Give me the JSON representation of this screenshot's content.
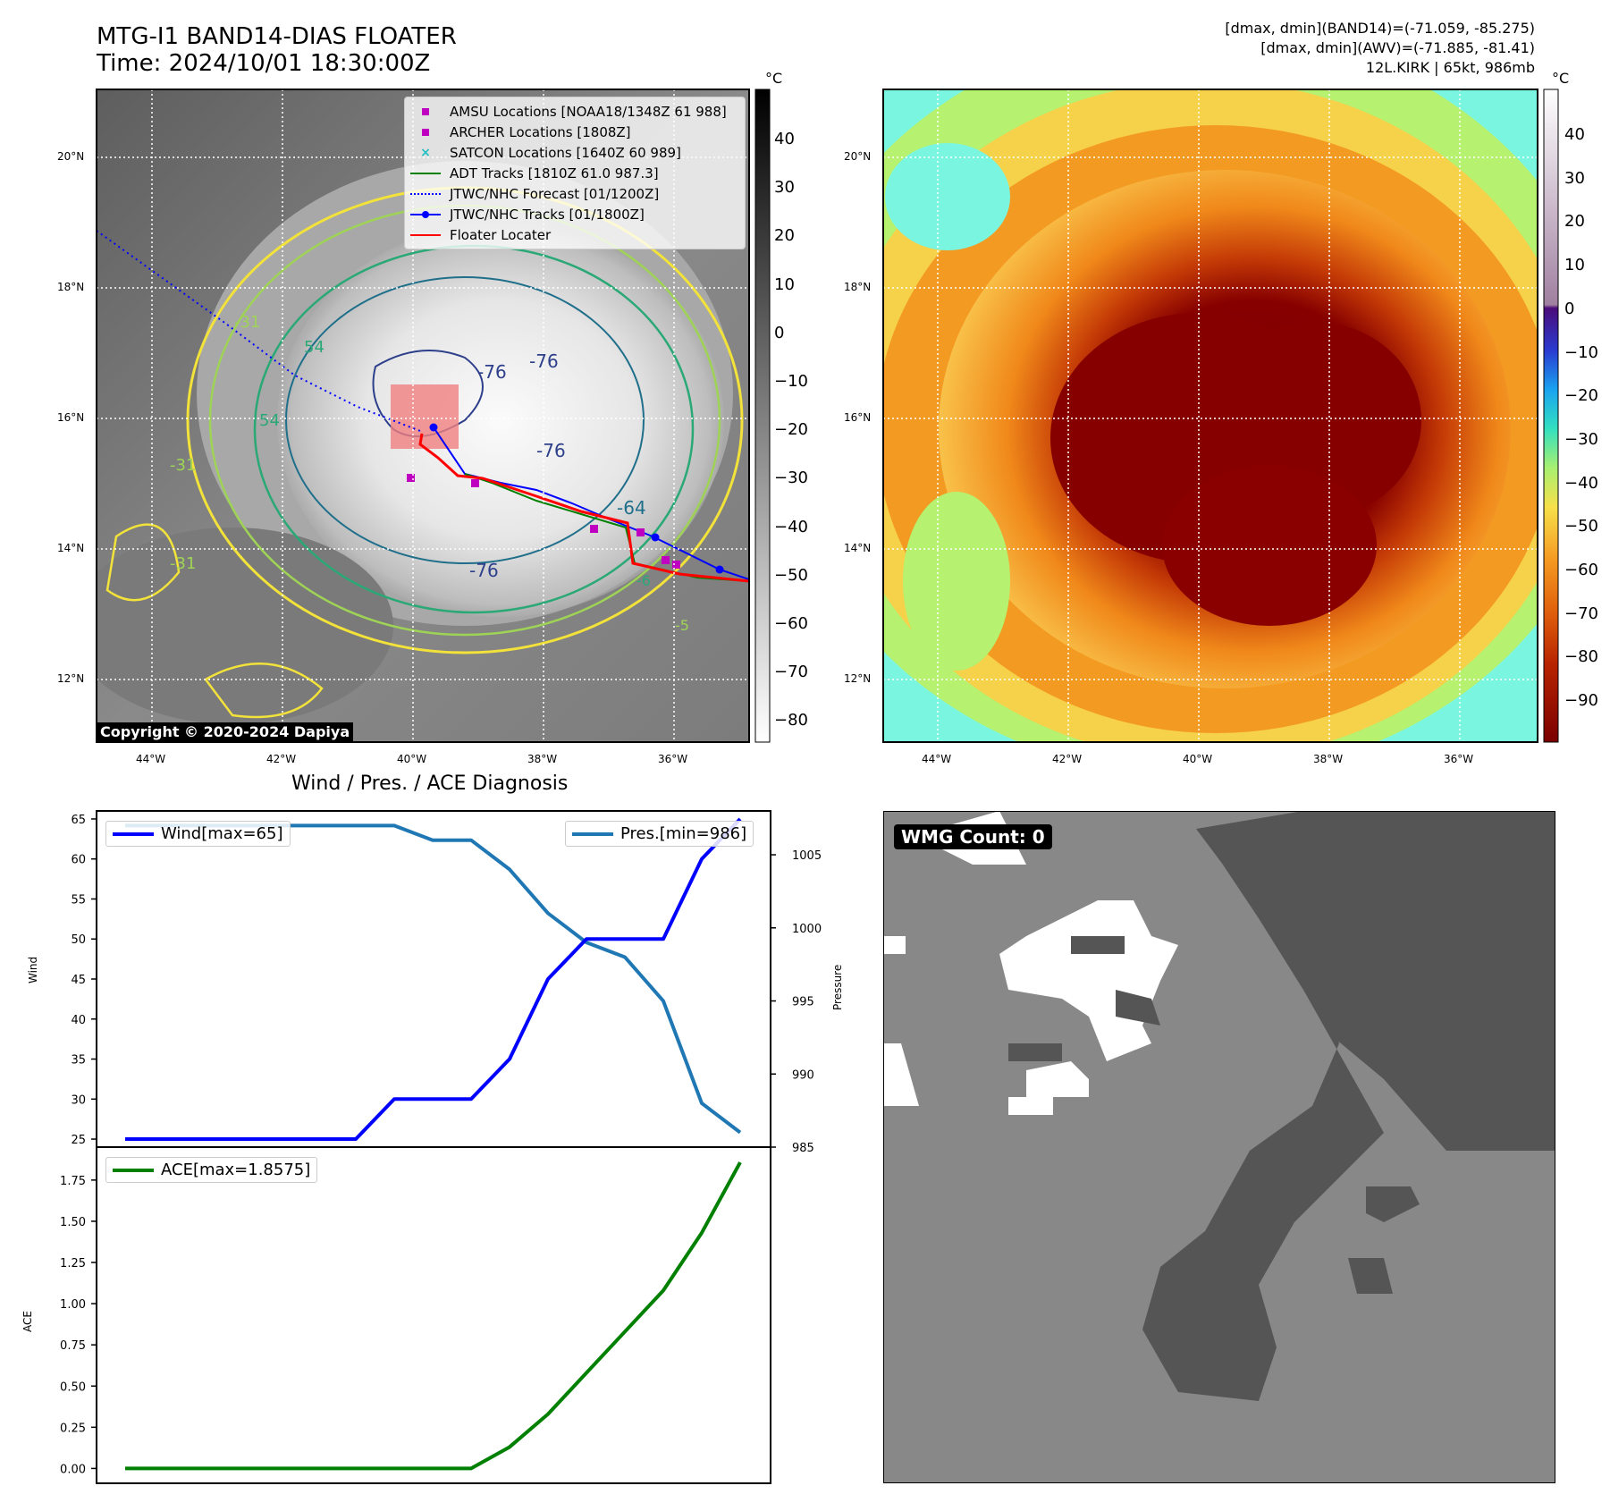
{
  "header": {
    "title_line1": "MTG-I1 BAND14-DIAS FLOATER",
    "title_line2": "Time: 2024/10/01 18:30:00Z",
    "info_line1": "[dmax, dmin](BAND14)=(-71.059, -85.275)",
    "info_line2": "[dmax, dmin](AWV)=(-71.885, -81.41)",
    "info_line3": "12L.KIRK | 65kt, 986mb"
  },
  "maps": {
    "lat_labels": [
      "20°N",
      "18°N",
      "16°N",
      "14°N",
      "12°N"
    ],
    "lon_labels": [
      "44°W",
      "42°W",
      "40°W",
      "38°W",
      "36°W"
    ],
    "copyright": "Copyright © 2020-2024 Dapiya",
    "legend": [
      {
        "label": "AMSU Locations [NOAA18/1348Z 61 988]",
        "color": "#c000c0",
        "symbol": "square"
      },
      {
        "label": "ARCHER Locations [1808Z]",
        "color": "#c000c0",
        "symbol": "square"
      },
      {
        "label": "SATCON Locations [1640Z 60 989]",
        "color": "#22c0c0",
        "symbol": "x"
      },
      {
        "label": "ADT Tracks [1810Z 61.0 987.3]",
        "color": "#008000",
        "symbol": "line"
      },
      {
        "label": "JTWC/NHC Forecast [01/1200Z]",
        "color": "#0000ff",
        "symbol": "dotted"
      },
      {
        "label": "JTWC/NHC Tracks [01/1800Z]",
        "color": "#0000ff",
        "symbol": "line-dot"
      },
      {
        "label": "Floater Locater",
        "color": "#ff0000",
        "symbol": "line"
      }
    ],
    "contour_labels": [
      "-76",
      "-76",
      "-76",
      "-76",
      "-64",
      "54",
      "54",
      "-31",
      "-31",
      "-31",
      "-6",
      "-5"
    ],
    "unit": "°C",
    "cbar_left_ticks": [
      "40",
      "30",
      "20",
      "10",
      "0",
      "−10",
      "−20",
      "−30",
      "−40",
      "−50",
      "−60",
      "−70",
      "−80"
    ],
    "cbar_right_ticks": [
      "40",
      "30",
      "20",
      "10",
      "0",
      "−10",
      "−20",
      "−30",
      "−40",
      "−50",
      "−60",
      "−70",
      "−80",
      "−90"
    ]
  },
  "diagnosis": {
    "title": "Wind / Pres. / ACE Diagnosis",
    "wind_ylabel": "Wind",
    "pres_ylabel": "Pressure",
    "ace_ylabel": "ACE",
    "wind_legend": "Wind[max=65]",
    "pres_legend": "Pres.[min=986]",
    "ace_legend": "ACE[max=1.8575]",
    "wind_ticks": [
      "65",
      "60",
      "55",
      "50",
      "45",
      "40",
      "35",
      "30",
      "25"
    ],
    "pres_ticks": [
      "1005",
      "1000",
      "995",
      "990",
      "985"
    ],
    "ace_ticks": [
      "1.75",
      "1.50",
      "1.25",
      "1.00",
      "0.75",
      "0.50",
      "0.25",
      "0.00"
    ]
  },
  "wmg": {
    "label": "WMG Count: 0"
  },
  "chart_data": [
    {
      "type": "line",
      "title": "Wind / Pres. / ACE Diagnosis",
      "x": [
        0,
        1,
        2,
        3,
        4,
        5,
        6,
        7,
        8,
        9,
        10,
        11,
        12,
        13,
        14,
        15,
        16
      ],
      "series": [
        {
          "name": "Wind[max=65]",
          "axis": "left",
          "color": "#0000ff",
          "values": [
            25,
            25,
            25,
            25,
            25,
            25,
            25,
            30,
            30,
            30,
            35,
            45,
            50,
            50,
            50,
            60,
            65
          ]
        },
        {
          "name": "Pres.[min=986]",
          "axis": "right",
          "color": "#1f77b4",
          "values": [
            1007,
            1007,
            1007,
            1007,
            1007,
            1007,
            1007,
            1007,
            1006,
            1006,
            1004,
            1001,
            999,
            998,
            995,
            988,
            986
          ]
        }
      ],
      "ylabel": "Wind",
      "ylim": [
        24,
        66
      ],
      "y2label": "Pressure",
      "y2lim": [
        985,
        1008
      ]
    },
    {
      "type": "line",
      "x": [
        0,
        1,
        2,
        3,
        4,
        5,
        6,
        7,
        8,
        9,
        10,
        11,
        12,
        13,
        14,
        15,
        16
      ],
      "series": [
        {
          "name": "ACE[max=1.8575]",
          "color": "#008000",
          "values": [
            0,
            0,
            0,
            0,
            0,
            0,
            0,
            0,
            0,
            0,
            0.13,
            0.33,
            0.58,
            0.83,
            1.08,
            1.43,
            1.8575
          ]
        }
      ],
      "ylabel": "ACE",
      "ylim": [
        -0.09,
        1.95
      ]
    }
  ]
}
